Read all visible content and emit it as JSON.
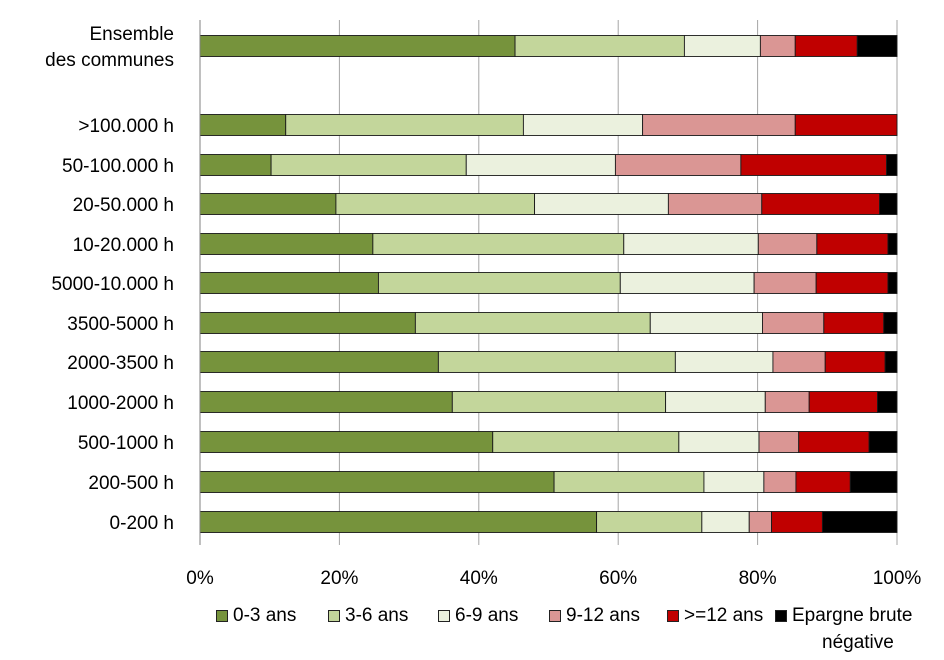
{
  "chart_data": {
    "type": "bar",
    "orientation": "horizontal",
    "stacked": true,
    "percent_axis": true,
    "xlim": [
      0,
      100
    ],
    "xticks": [
      "0%",
      "20%",
      "40%",
      "60%",
      "80%",
      "100%"
    ],
    "grid": true,
    "legend_position": "bottom",
    "categories": [
      [
        "Ensemble",
        "des communes"
      ],
      [
        ">100.000 h"
      ],
      [
        "50-100.000 h"
      ],
      [
        "20-50.000 h"
      ],
      [
        "10-20.000 h"
      ],
      [
        "5000-10.000 h"
      ],
      [
        "3500-5000 h"
      ],
      [
        "2000-3500 h"
      ],
      [
        "1000-2000 h"
      ],
      [
        "500-1000 h"
      ],
      [
        "200-500 h"
      ],
      [
        "0-200 h"
      ]
    ],
    "series": [
      {
        "name": "0-3 ans",
        "color": "#76933c",
        "values": [
          45.2,
          12.3,
          10.2,
          19.5,
          24.8,
          25.6,
          30.9,
          34.2,
          36.2,
          42.0,
          50.8,
          56.9
        ]
      },
      {
        "name": "3-6 ans",
        "color": "#c3d69b",
        "values": [
          24.3,
          34.1,
          28.0,
          28.5,
          36.0,
          34.7,
          33.7,
          34.0,
          30.6,
          26.7,
          21.5,
          15.1
        ]
      },
      {
        "name": "6-9 ans",
        "color": "#ebf1de",
        "values": [
          10.9,
          17.1,
          21.4,
          19.2,
          19.3,
          19.2,
          16.1,
          14.0,
          14.3,
          11.5,
          8.6,
          6.8
        ]
      },
      {
        "name": "9-12 ans",
        "color": "#da9694",
        "values": [
          5.0,
          21.9,
          18.0,
          13.4,
          8.4,
          8.9,
          8.8,
          7.5,
          6.3,
          5.7,
          4.6,
          3.2
        ]
      },
      {
        "name": ">=12 ans",
        "color": "#c00000",
        "values": [
          8.9,
          14.6,
          20.9,
          16.9,
          10.2,
          10.3,
          8.6,
          8.6,
          9.8,
          10.1,
          7.8,
          7.3
        ]
      },
      {
        "name": "Epargne brute négative",
        "color": "#000000",
        "values": [
          5.7,
          0.0,
          1.5,
          2.5,
          1.3,
          1.3,
          1.9,
          1.7,
          2.8,
          4.0,
          6.7,
          10.7
        ]
      }
    ],
    "legend_labels": [
      "0-3 ans",
      "3-6 ans",
      "6-9 ans",
      "9-12 ans",
      ">=12 ans",
      "Epargne brute",
      "négative"
    ]
  }
}
